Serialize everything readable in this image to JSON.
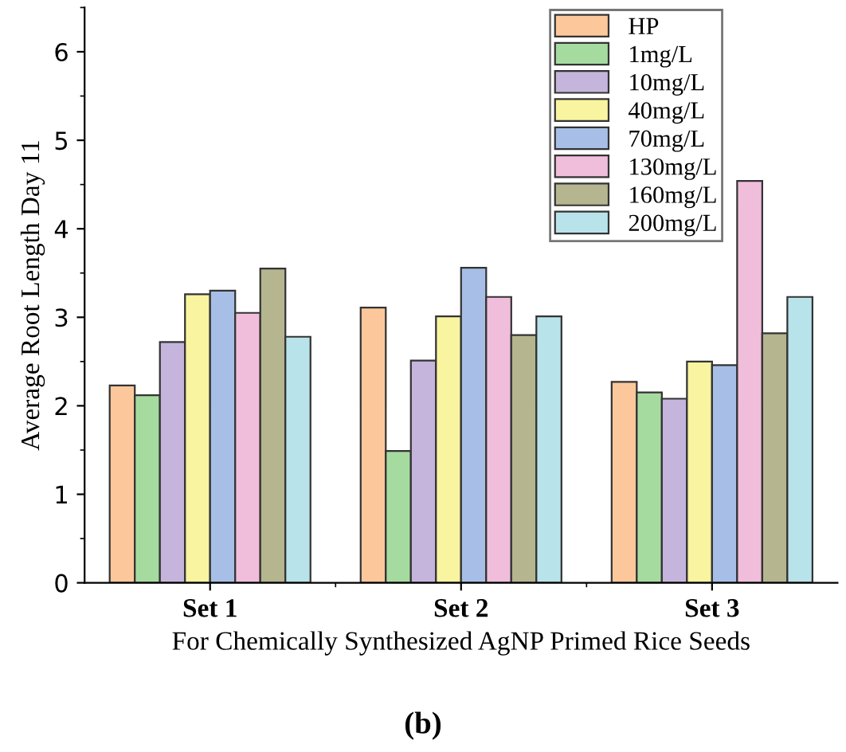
{
  "chart_data": {
    "type": "bar",
    "xlabel": "For Chemically Synthesized AgNP Primed Rice Seeds",
    "ylabel": "Average Root Length Day 11",
    "categories": [
      "Set 1",
      "Set 2",
      "Set 3"
    ],
    "series": [
      {
        "name": "HP",
        "color": "#fcc89b",
        "values": [
          2.23,
          3.11,
          2.27
        ]
      },
      {
        "name": "1mg/L",
        "color": "#a6dba0",
        "values": [
          2.12,
          1.49,
          2.15
        ]
      },
      {
        "name": "10mg/L",
        "color": "#c5b5dc",
        "values": [
          2.72,
          2.51,
          2.08
        ]
      },
      {
        "name": "40mg/L",
        "color": "#f8f4a0",
        "values": [
          3.26,
          3.01,
          2.5
        ]
      },
      {
        "name": "70mg/L",
        "color": "#a7bfe6",
        "values": [
          3.3,
          3.56,
          2.46
        ]
      },
      {
        "name": "130mg/L",
        "color": "#f0bedb",
        "values": [
          3.05,
          3.23,
          4.54
        ]
      },
      {
        "name": "160mg/L",
        "color": "#b5b58f",
        "values": [
          3.55,
          2.8,
          2.82
        ]
      },
      {
        "name": "200mg/L",
        "color": "#b8e3ea",
        "values": [
          2.78,
          3.01,
          3.23
        ]
      }
    ],
    "ylim": [
      0,
      6.5
    ],
    "yticks": [
      0,
      1,
      2,
      3,
      4,
      5,
      6
    ],
    "grid": false,
    "legend": "top right",
    "annotations": [
      "(b)"
    ]
  }
}
